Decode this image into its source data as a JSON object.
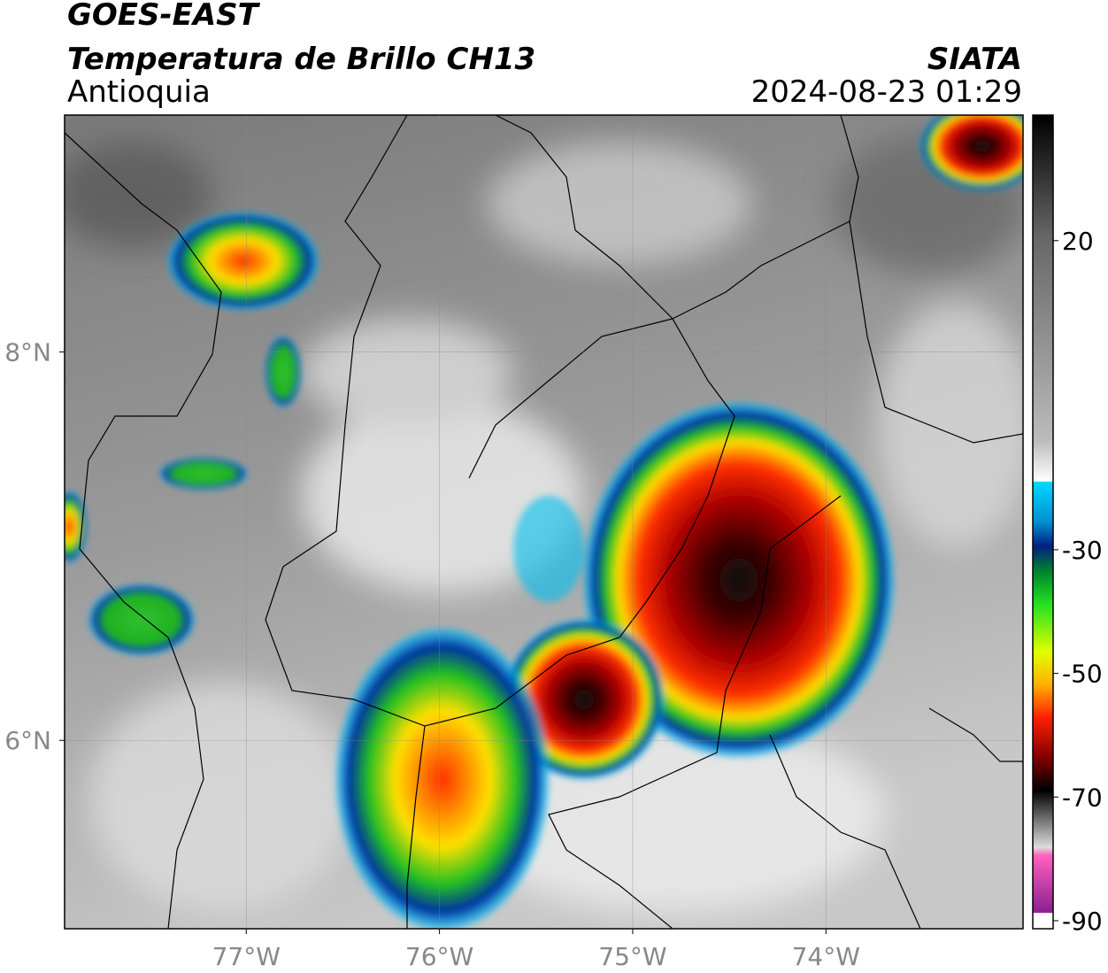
{
  "header": {
    "title": "GOES-EAST",
    "subtitle": "Temperatura de Brillo CH13",
    "region": "Antioquia",
    "source": "SIATA",
    "datetime": "2024-08-23 01:29"
  },
  "map": {
    "xlim": [
      -77.94,
      -72.98
    ],
    "ylim": [
      5.03,
      9.22
    ],
    "xticks": [
      {
        "value": -77,
        "label": "77°W"
      },
      {
        "value": -76,
        "label": "76°W"
      },
      {
        "value": -75,
        "label": "75°W"
      },
      {
        "value": -74,
        "label": "74°W"
      }
    ],
    "yticks": [
      {
        "value": 8,
        "label": "8°N"
      },
      {
        "value": 6,
        "label": "6°N"
      }
    ],
    "grid": true,
    "colorbar": {
      "lim": [
        -91.3,
        40.3
      ],
      "ticks": [
        20,
        -30,
        -50,
        -70,
        -90
      ]
    }
  }
}
